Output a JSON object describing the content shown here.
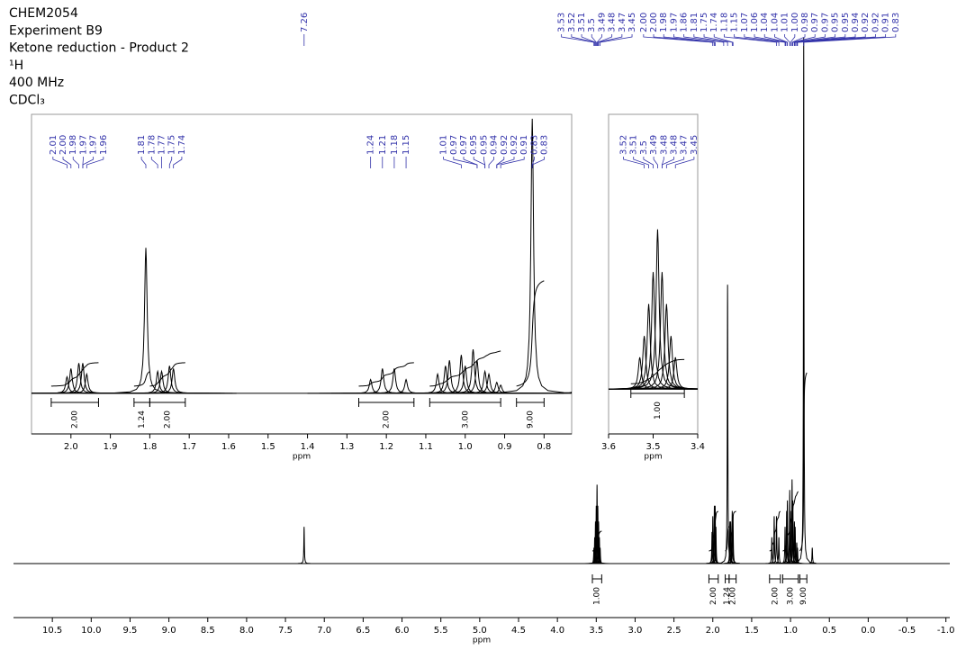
{
  "chart_data": [
    {
      "type": "nmr",
      "title": [
        "CHEM2054",
        "Experiment B9",
        "Ketone reduction - Product 2",
        "¹H",
        "400 MHz",
        "CDCl₃"
      ],
      "xlabel": "ppm",
      "xlim": [
        11.0,
        -1.05
      ],
      "ylim": [
        0,
        102
      ],
      "xticks": [
        10.5,
        {
          "value": 10,
          "label": "10.0"
        },
        9.5,
        {
          "value": 9,
          "label": "9.0"
        },
        8.5,
        {
          "value": 8,
          "label": "8.0"
        },
        7.5,
        {
          "value": 7,
          "label": "7.0"
        },
        6.5,
        {
          "value": 6,
          "label": "6.0"
        },
        5.5,
        {
          "value": 5,
          "label": "5.0"
        },
        4.5,
        {
          "value": 4,
          "label": "4.0"
        },
        3.5,
        {
          "value": 3,
          "label": "3.0"
        },
        2.5,
        {
          "value": 2,
          "label": "2.0"
        },
        1.5,
        {
          "value": 1,
          "label": "1.0"
        },
        0.5,
        {
          "value": 0,
          "label": "0.0"
        },
        -0.5,
        {
          "value": -1,
          "label": "-1.0"
        }
      ],
      "color": "#000000",
      "label_color": "#3333aa",
      "x": [
        7.26,
        3.53,
        3.52,
        3.51,
        3.5,
        3.49,
        3.48,
        3.47,
        3.46,
        3.45,
        2.01,
        2.0,
        1.98,
        1.97,
        1.96,
        1.81,
        1.78,
        1.77,
        1.75,
        1.74,
        1.24,
        1.21,
        1.18,
        1.15,
        1.07,
        1.05,
        1.04,
        1.01,
        1.0,
        0.98,
        0.97,
        0.95,
        0.94,
        0.92,
        0.91,
        0.83,
        0.72
      ],
      "values": [
        7,
        3,
        5,
        8,
        11,
        15,
        11,
        8,
        5,
        3,
        6,
        9,
        11,
        11,
        7,
        53,
        8,
        8,
        10,
        9,
        5,
        9,
        9,
        5,
        7,
        10,
        12,
        14,
        10,
        16,
        12,
        8,
        7,
        4,
        3,
        100,
        3
      ],
      "peak_labels": [
        7.26,
        3.53,
        3.52,
        3.51,
        3.5,
        3.49,
        3.48,
        3.47,
        3.45,
        {
          "value": 2,
          "label": "2.00"
        },
        {
          "value": 2,
          "label": "2.00"
        },
        1.98,
        1.97,
        1.86,
        1.81,
        1.75,
        1.74,
        1.18,
        1.15,
        1.07,
        1.06,
        1.04,
        1.04,
        1.01,
        {
          "value": 1,
          "label": "1.00"
        },
        0.98,
        0.97,
        0.97,
        0.95,
        0.95,
        0.94,
        0.92,
        0.92,
        0.91,
        0.83
      ],
      "integrals": [
        {
          "range": [
            3.55,
            3.43
          ],
          "value": {
            "value": 1,
            "label": "1.00"
          }
        },
        {
          "range": [
            2.05,
            1.93
          ],
          "value": {
            "value": 2,
            "label": "2.00"
          }
        },
        {
          "range": [
            1.84,
            1.79
          ],
          "value": 1.24
        },
        {
          "range": [
            1.79,
            1.7
          ],
          "value": {
            "value": 2,
            "label": "2.00"
          }
        },
        {
          "range": [
            1.27,
            1.13
          ],
          "value": {
            "value": 2,
            "label": "2.00"
          }
        },
        {
          "range": [
            1.1,
            0.9
          ],
          "value": {
            "value": 3,
            "label": "3.00"
          }
        },
        {
          "range": [
            0.88,
            0.79
          ],
          "value": {
            "value": 9,
            "label": "9.00"
          }
        }
      ]
    },
    {
      "type": "nmr",
      "xlabel": "ppm",
      "xlim": [
        2.1,
        0.73
      ],
      "ylim": [
        -14.8,
        101.6
      ],
      "xticks": [
        {
          "value": 2,
          "label": "2.0"
        },
        1.9,
        1.8,
        1.7,
        1.6,
        1.5,
        1.4,
        1.3,
        1.2,
        1.1,
        {
          "value": 1,
          "label": "1.0"
        },
        0.9,
        0.8
      ],
      "peak_labels": [
        2.01,
        {
          "value": 2,
          "label": "2.00"
        },
        1.98,
        1.97,
        1.97,
        1.96,
        1.81,
        1.78,
        1.77,
        1.75,
        1.74,
        1.24,
        1.21,
        1.18,
        1.15,
        1.01,
        0.97,
        0.97,
        0.95,
        0.95,
        0.94,
        0.92,
        0.92,
        0.91,
        0.83,
        0.83
      ],
      "integrals": [
        {
          "range": [
            2.05,
            1.93
          ],
          "value": {
            "value": 2,
            "label": "2.00"
          }
        },
        {
          "range": [
            1.84,
            1.8
          ],
          "value": 1.24
        },
        {
          "range": [
            1.8,
            1.71
          ],
          "value": {
            "value": 2,
            "label": "2.00"
          }
        },
        {
          "range": [
            1.27,
            1.13
          ],
          "value": {
            "value": 2,
            "label": "2.00"
          }
        },
        {
          "range": [
            1.09,
            0.91
          ],
          "value": {
            "value": 3,
            "label": "3.00"
          }
        },
        {
          "range": [
            0.87,
            0.8
          ],
          "value": {
            "value": 9,
            "label": "9.00"
          }
        }
      ]
    },
    {
      "type": "nmr",
      "xlabel": "ppm",
      "xlim": [
        3.6,
        3.4
      ],
      "ylim": [
        -4.2,
        25.8
      ],
      "xticks": [
        3.6,
        3.5,
        3.4
      ],
      "peak_labels": [
        3.52,
        3.51,
        3.5,
        3.49,
        3.48,
        3.48,
        3.47,
        3.45
      ],
      "integrals": [
        {
          "range": [
            3.55,
            3.43
          ],
          "value": {
            "value": 1,
            "label": "1.00"
          }
        }
      ]
    }
  ]
}
